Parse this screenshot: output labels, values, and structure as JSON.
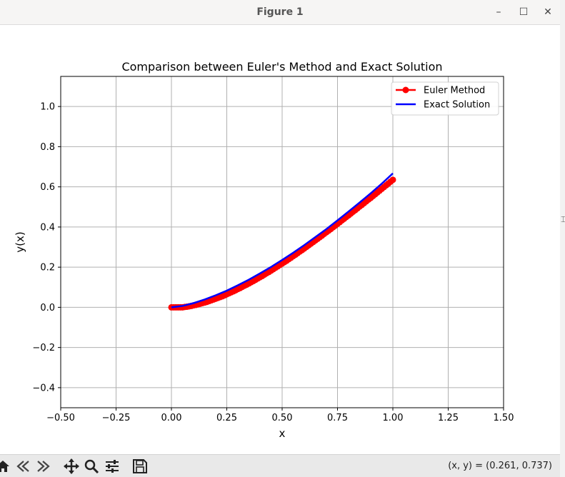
{
  "window": {
    "title": "Figure 1",
    "minimize_symbol": "–",
    "maximize_symbol": "☐",
    "close_symbol": "✕"
  },
  "toolbar": {
    "icons": [
      "home-icon",
      "back-icon",
      "forward-icon",
      "pan-icon",
      "zoom-icon",
      "configure-subplots-icon",
      "save-icon"
    ],
    "coords_text": "(x, y) = (0.261, 0.737)"
  },
  "chart_data": {
    "type": "line",
    "title": "Comparison between Euler's Method and Exact Solution",
    "xlabel": "x",
    "ylabel": "y(x)",
    "xlim": [
      -0.5,
      1.5
    ],
    "ylim": [
      -0.5,
      1.15
    ],
    "xticks": [
      -0.5,
      -0.25,
      0.0,
      0.25,
      0.5,
      0.75,
      1.0,
      1.25,
      1.5
    ],
    "xtick_labels": [
      "−0.50",
      "−0.25",
      "0.00",
      "0.25",
      "0.50",
      "0.75",
      "1.00",
      "1.25",
      "1.50"
    ],
    "yticks": [
      -0.4,
      -0.2,
      0.0,
      0.2,
      0.4,
      0.6,
      0.8,
      1.0
    ],
    "ytick_labels": [
      "−0.4",
      "−0.2",
      "0.0",
      "0.2",
      "0.4",
      "0.6",
      "0.8",
      "1.0"
    ],
    "grid": true,
    "legend_position": "top-right",
    "series": [
      {
        "name": "Euler Method",
        "color": "#ff0000",
        "marker": "o",
        "x": [
          0.0,
          0.01,
          0.02,
          0.03,
          0.04,
          0.05,
          0.06,
          0.07,
          0.08,
          0.09,
          0.1,
          0.11,
          0.12,
          0.13,
          0.14,
          0.15,
          0.16,
          0.17,
          0.18,
          0.19,
          0.2,
          0.21,
          0.22,
          0.23,
          0.24,
          0.25,
          0.26,
          0.27,
          0.28,
          0.29,
          0.3,
          0.31,
          0.32,
          0.33,
          0.34,
          0.35,
          0.36,
          0.37,
          0.38,
          0.39,
          0.4,
          0.41,
          0.42,
          0.43,
          0.44,
          0.45,
          0.46,
          0.47,
          0.48,
          0.49,
          0.5,
          0.51,
          0.52,
          0.53,
          0.54,
          0.55,
          0.56,
          0.57,
          0.58,
          0.59,
          0.6,
          0.61,
          0.62,
          0.63,
          0.64,
          0.65,
          0.66,
          0.67,
          0.68,
          0.69,
          0.7,
          0.71,
          0.72,
          0.73,
          0.74,
          0.75,
          0.76,
          0.77,
          0.78,
          0.79,
          0.8,
          0.81,
          0.82,
          0.83,
          0.84,
          0.85,
          0.86,
          0.87,
          0.88,
          0.89,
          0.9,
          0.91,
          0.92,
          0.93,
          0.94,
          0.95,
          0.96,
          0.97,
          0.98,
          0.99,
          1.0
        ],
        "y": [
          0.0,
          0.0,
          0.0,
          0.0,
          0.0,
          0.0,
          0.002,
          0.003,
          0.005,
          0.007,
          0.01,
          0.012,
          0.015,
          0.018,
          0.021,
          0.024,
          0.027,
          0.031,
          0.035,
          0.039,
          0.043,
          0.047,
          0.051,
          0.055,
          0.06,
          0.065,
          0.07,
          0.075,
          0.08,
          0.085,
          0.091,
          0.096,
          0.102,
          0.108,
          0.113,
          0.119,
          0.125,
          0.131,
          0.137,
          0.144,
          0.15,
          0.156,
          0.163,
          0.17,
          0.176,
          0.183,
          0.19,
          0.197,
          0.204,
          0.211,
          0.218,
          0.225,
          0.232,
          0.24,
          0.247,
          0.255,
          0.262,
          0.27,
          0.278,
          0.285,
          0.293,
          0.301,
          0.309,
          0.317,
          0.325,
          0.333,
          0.341,
          0.349,
          0.357,
          0.366,
          0.374,
          0.382,
          0.39,
          0.399,
          0.407,
          0.416,
          0.424,
          0.433,
          0.441,
          0.45,
          0.458,
          0.467,
          0.476,
          0.484,
          0.493,
          0.502,
          0.51,
          0.519,
          0.528,
          0.537,
          0.545,
          0.554,
          0.563,
          0.572,
          0.581,
          0.59,
          0.599,
          0.608,
          0.617,
          0.626,
          0.635
        ]
      },
      {
        "name": "Exact Solution",
        "color": "#0000ff",
        "x": [
          0.0,
          0.05,
          0.1,
          0.15,
          0.2,
          0.25,
          0.3,
          0.35,
          0.4,
          0.45,
          0.5,
          0.55,
          0.6,
          0.65,
          0.7,
          0.75,
          0.8,
          0.85,
          0.9,
          0.95,
          1.0
        ],
        "y": [
          0.0,
          0.007,
          0.021,
          0.039,
          0.06,
          0.083,
          0.11,
          0.138,
          0.169,
          0.201,
          0.236,
          0.272,
          0.31,
          0.35,
          0.39,
          0.433,
          0.477,
          0.522,
          0.568,
          0.616,
          0.667
        ]
      }
    ]
  }
}
